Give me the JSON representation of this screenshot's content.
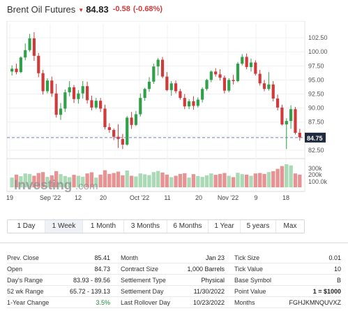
{
  "header": {
    "title": "Brent Oil Futures",
    "price": "84.83",
    "change": "-0.58",
    "change_percent": "(-0.68%)",
    "down_color": "#dd2b2b",
    "arrow_icon": "down-triangle-icon"
  },
  "chart": {
    "type": "candlestick",
    "current_price_label": "84.75",
    "watermark_brand": "Investing",
    "watermark_suffix": ".com",
    "y_ticks": [
      "102.50",
      "100.00",
      "97.50",
      "95.00",
      "92.50",
      "90.00",
      "87.50",
      "85.00",
      "82.50"
    ],
    "volume_ticks": [
      "300k",
      "200k",
      "100.0k"
    ],
    "x_labels": [
      "19",
      "Sep '22",
      "12",
      "20",
      "Oct '22",
      "11",
      "20",
      "Nov '22",
      "9",
      "18"
    ],
    "up_color": "#30a04a",
    "down_color": "#d13a3a",
    "volume_up_color": "#a9d9b5",
    "volume_down_color": "#e89393"
  },
  "chart_data": {
    "type": "candlestick",
    "title": "Brent Oil Futures",
    "ylim": [
      81.5,
      105
    ],
    "y_ticks": [
      82.5,
      85,
      87.5,
      90,
      92.5,
      95,
      97.5,
      100,
      102.5
    ],
    "x_tick_labels": [
      "19",
      "Sep '22",
      "12",
      "20",
      "Oct '22",
      "11",
      "20",
      "Nov '22",
      "9",
      "18"
    ],
    "last_price": 84.75,
    "ohlc": [
      [
        96.5,
        97.6,
        95.8,
        97.0
      ],
      [
        97.0,
        97.9,
        96.0,
        96.4
      ],
      [
        96.4,
        99.2,
        96.2,
        99.0
      ],
      [
        99.0,
        101.5,
        98.5,
        100.3
      ],
      [
        100.3,
        103.2,
        100.0,
        102.4
      ],
      [
        102.4,
        103.5,
        98.4,
        99.3
      ],
      [
        99.3,
        99.8,
        95.5,
        96.2
      ],
      [
        96.2,
        96.8,
        92.4,
        93.0
      ],
      [
        93.0,
        95.3,
        92.6,
        94.9
      ],
      [
        94.9,
        95.6,
        92.0,
        92.6
      ],
      [
        92.6,
        94.3,
        88.3,
        88.8
      ],
      [
        88.8,
        90.9,
        87.9,
        89.9
      ],
      [
        89.9,
        93.3,
        89.3,
        92.8
      ],
      [
        92.8,
        94.8,
        92.1,
        93.7
      ],
      [
        93.7,
        94.1,
        90.9,
        91.6
      ],
      [
        91.6,
        93.2,
        90.8,
        92.6
      ],
      [
        92.6,
        94.8,
        91.7,
        93.9
      ],
      [
        93.9,
        94.7,
        90.8,
        91.4
      ],
      [
        91.4,
        92.2,
        89.6,
        90.1
      ],
      [
        90.1,
        91.8,
        89.8,
        91.3
      ],
      [
        91.3,
        91.8,
        89.3,
        89.9
      ],
      [
        89.9,
        90.6,
        86.2,
        86.6
      ],
      [
        86.6,
        87.3,
        85.6,
        86.1
      ],
      [
        86.1,
        86.4,
        84.3,
        84.9
      ],
      [
        84.9,
        87.1,
        82.9,
        84.5
      ],
      [
        84.5,
        85.4,
        82.7,
        83.5
      ],
      [
        83.5,
        88.6,
        83.3,
        88.3
      ],
      [
        88.3,
        89.3,
        86.3,
        87.0
      ],
      [
        87.0,
        89.5,
        86.8,
        88.9
      ],
      [
        88.9,
        92.6,
        88.5,
        91.8
      ],
      [
        91.8,
        93.6,
        91.3,
        93.4
      ],
      [
        93.4,
        95.5,
        92.9,
        94.7
      ],
      [
        94.7,
        97.9,
        94.3,
        97.4
      ],
      [
        97.4,
        98.9,
        95.8,
        98.6
      ],
      [
        98.6,
        99.1,
        95.3,
        95.6
      ],
      [
        95.6,
        96.4,
        93.0,
        93.2
      ],
      [
        93.2,
        94.8,
        92.2,
        94.4
      ],
      [
        94.4,
        94.9,
        92.6,
        93.0
      ],
      [
        93.0,
        93.4,
        91.5,
        91.8
      ],
      [
        91.8,
        92.5,
        89.8,
        90.3
      ],
      [
        90.3,
        91.6,
        89.8,
        91.2
      ],
      [
        91.2,
        92.1,
        89.7,
        90.4
      ],
      [
        90.4,
        91.9,
        90.1,
        91.5
      ],
      [
        91.5,
        93.7,
        91.0,
        93.4
      ],
      [
        93.4,
        95.2,
        93.1,
        95.0
      ],
      [
        95.0,
        96.7,
        94.6,
        96.5
      ],
      [
        96.5,
        97.1,
        95.6,
        96.0
      ],
      [
        96.0,
        96.9,
        94.9,
        95.4
      ],
      [
        95.4,
        95.8,
        92.6,
        93.1
      ],
      [
        93.1,
        95.3,
        92.8,
        95.0
      ],
      [
        95.0,
        95.9,
        94.2,
        94.8
      ],
      [
        94.8,
        98.2,
        94.6,
        97.9
      ],
      [
        97.9,
        99.6,
        97.6,
        99.1
      ],
      [
        99.1,
        99.7,
        96.9,
        97.3
      ],
      [
        97.3,
        98.8,
        96.5,
        98.1
      ],
      [
        98.1,
        98.5,
        95.8,
        96.1
      ],
      [
        96.1,
        96.8,
        94.0,
        94.4
      ],
      [
        94.4,
        95.0,
        93.0,
        93.4
      ],
      [
        93.4,
        96.4,
        93.1,
        94.2
      ],
      [
        94.2,
        94.8,
        91.2,
        91.7
      ],
      [
        91.7,
        92.4,
        89.6,
        90.1
      ],
      [
        90.1,
        90.6,
        86.9,
        87.1
      ],
      [
        87.1,
        88.2,
        82.7,
        87.7
      ],
      [
        87.7,
        90.5,
        86.3,
        89.8
      ],
      [
        89.8,
        90.2,
        85.3,
        85.6
      ],
      [
        85.6,
        86.3,
        84.2,
        84.8
      ]
    ],
    "volume_relative": [
      0.42,
      0.55,
      0.48,
      0.6,
      0.58,
      0.5,
      0.62,
      0.66,
      0.45,
      0.52,
      0.7,
      0.57,
      0.49,
      0.44,
      0.54,
      0.5,
      0.46,
      0.6,
      0.65,
      0.42,
      0.55,
      0.74,
      0.58,
      0.62,
      0.68,
      0.52,
      0.73,
      0.5,
      0.47,
      0.6,
      0.56,
      0.53,
      0.66,
      0.71,
      0.64,
      0.55,
      0.44,
      0.5,
      0.58,
      0.61,
      0.42,
      0.57,
      0.49,
      0.45,
      0.52,
      0.6,
      0.54,
      0.58,
      0.62,
      0.5,
      0.44,
      0.63,
      0.57,
      0.55,
      0.5,
      0.6,
      0.62,
      0.58,
      0.66,
      0.7,
      0.8,
      0.92,
      1.0,
      0.95,
      0.6,
      0.55
    ]
  },
  "ranges": {
    "active": "1 Week",
    "items": [
      "1 Day",
      "1 Week",
      "1 Month",
      "3 Months",
      "6 Months",
      "1 Year",
      "5 years",
      "Max"
    ]
  },
  "stats": {
    "rows": [
      [
        "Prev. Close",
        "85.41",
        "Month",
        "Jan 23",
        "Tick Size",
        "0.01"
      ],
      [
        "Open",
        "84.73",
        "Contract Size",
        "1,000 Barrels",
        "Tick Value",
        "10"
      ],
      [
        "Day's Range",
        "83.93 - 89.56",
        "Settlement Type",
        "Physical",
        "Base Symbol",
        "B"
      ],
      [
        "52 wk Range",
        "65.72 - 139.13",
        "Settlement Day",
        "11/30/2022",
        "Point Value",
        "1 = $1000"
      ],
      [
        "1-Year Change",
        "3.5%",
        "Last Rollover Day",
        "10/23/2022",
        "Months",
        "FGHJKMNQUVXZ"
      ]
    ],
    "green_value": "3.5%",
    "green_color": "#1a8a3a"
  }
}
